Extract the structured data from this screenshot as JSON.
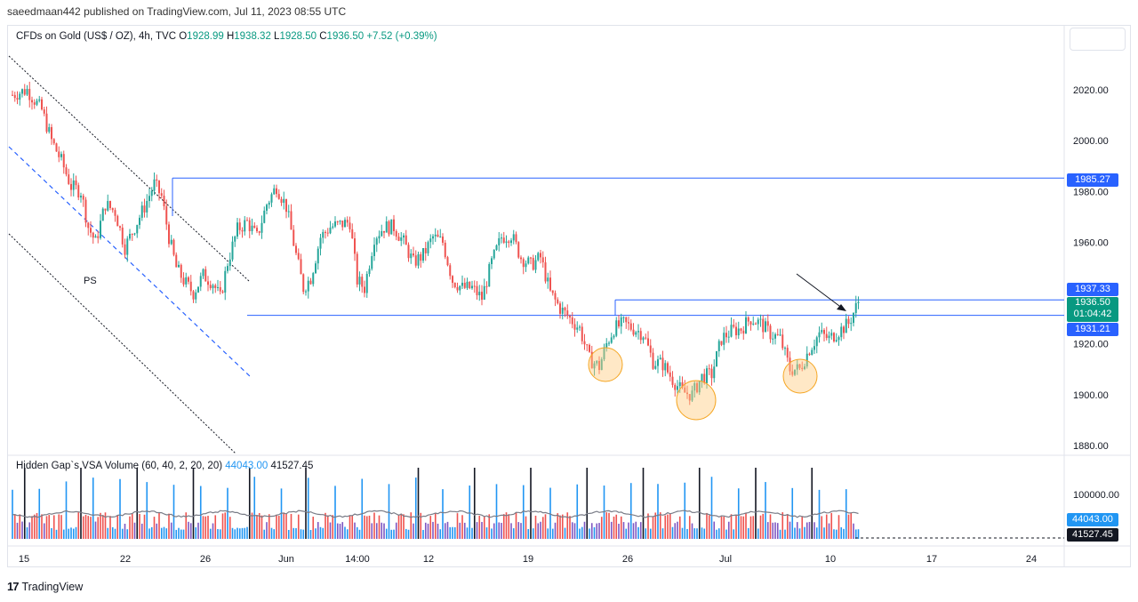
{
  "header": {
    "published": "saeedmaan442 published on TradingView.com, Jul 11, 2023 08:55 UTC"
  },
  "legend": {
    "symbol": "CFDs on Gold (US$ / OZ), 4h, TVC",
    "open_label": "O",
    "open": "1928.99",
    "high_label": "H",
    "high": "1938.32",
    "low_label": "L",
    "low": "1928.50",
    "close_label": "C",
    "close": "1936.50",
    "change": "+7.52 (+0.39%)"
  },
  "volume_legend": {
    "name": "Hidden Gap`s VSA Volume (60, 40, 2, 20, 20)",
    "value1": "44043.00",
    "value2": "41527.45"
  },
  "price_tags": {
    "level_top": "1985.27",
    "level_mid_high": "1937.33",
    "current_price": "1936.50",
    "countdown": "01:04:42",
    "level_mid_low": "1931.21",
    "vol_tag1": "44043.00",
    "vol_tag2": "41527.45"
  },
  "annotation": {
    "ps_label": "PS"
  },
  "footer": {
    "brand": "TradingView"
  },
  "colors": {
    "up": "#26a69a",
    "down": "#ef5350",
    "level_line": "#2962ff",
    "current_bg": "#089981",
    "level_tag_bg": "#2962ff",
    "circle_fill": "#ffcc80",
    "circle_stroke": "#f5a623"
  },
  "chart_data": {
    "type": "candlestick",
    "symbol": "CFDs on Gold (US$ / OZ)",
    "timeframe": "4h",
    "y_axis_ticks": [
      "2020.00",
      "2000.00",
      "1980.00",
      "1960.00",
      "1940.00",
      "1920.00",
      "1900.00",
      "1880.00"
    ],
    "ylim": [
      1878,
      2030
    ],
    "x_axis_ticks": [
      "15",
      "22",
      "26",
      "Jun",
      "14:00",
      "12",
      "19",
      "26",
      "Jul",
      "10",
      "17",
      "24"
    ],
    "volume_axis_tick": "100000.00",
    "horizontal_levels": [
      1985.27,
      1937.33,
      1931.21
    ],
    "price_path": [
      [
        0,
        2018
      ],
      [
        6,
        2020
      ],
      [
        12,
        2012
      ],
      [
        16,
        2000
      ],
      [
        20,
        1992
      ],
      [
        24,
        1982
      ],
      [
        28,
        1980
      ],
      [
        31,
        1966
      ],
      [
        34,
        1960
      ],
      [
        38,
        1975
      ],
      [
        42,
        1972
      ],
      [
        46,
        1958
      ],
      [
        50,
        1966
      ],
      [
        54,
        1974
      ],
      [
        58,
        1983
      ],
      [
        61,
        1978
      ],
      [
        64,
        1962
      ],
      [
        67,
        1950
      ],
      [
        70,
        1945
      ],
      [
        74,
        1940
      ],
      [
        78,
        1947
      ],
      [
        82,
        1944
      ],
      [
        85,
        1938
      ],
      [
        88,
        1952
      ],
      [
        92,
        1965
      ],
      [
        96,
        1968
      ],
      [
        100,
        1962
      ],
      [
        104,
        1975
      ],
      [
        108,
        1982
      ],
      [
        112,
        1974
      ],
      [
        116,
        1955
      ],
      [
        119,
        1942
      ],
      [
        122,
        1946
      ],
      [
        126,
        1962
      ],
      [
        130,
        1966
      ],
      [
        134,
        1967
      ],
      [
        138,
        1968
      ],
      [
        141,
        1945
      ],
      [
        144,
        1942
      ],
      [
        148,
        1962
      ],
      [
        152,
        1966
      ],
      [
        156,
        1966
      ],
      [
        160,
        1960
      ],
      [
        164,
        1952
      ],
      [
        168,
        1955
      ],
      [
        172,
        1962
      ],
      [
        176,
        1960
      ],
      [
        180,
        1945
      ],
      [
        184,
        1942
      ],
      [
        188,
        1942
      ],
      [
        192,
        1938
      ],
      [
        196,
        1952
      ],
      [
        200,
        1962
      ],
      [
        204,
        1963
      ],
      [
        208,
        1954
      ],
      [
        212,
        1951
      ],
      [
        216,
        1954
      ],
      [
        220,
        1940
      ],
      [
        224,
        1934
      ],
      [
        228,
        1930
      ],
      [
        232,
        1926
      ],
      [
        236,
        1914
      ],
      [
        240,
        1911
      ],
      [
        243,
        1920
      ],
      [
        246,
        1926
      ],
      [
        250,
        1928
      ],
      [
        254,
        1926
      ],
      [
        258,
        1924
      ],
      [
        262,
        1913
      ],
      [
        266,
        1912
      ],
      [
        270,
        1906
      ],
      [
        274,
        1901
      ],
      [
        278,
        1900
      ],
      [
        282,
        1907
      ],
      [
        286,
        1908
      ],
      [
        290,
        1922
      ],
      [
        294,
        1925
      ],
      [
        298,
        1926
      ],
      [
        302,
        1930
      ],
      [
        306,
        1928
      ],
      [
        310,
        1924
      ],
      [
        314,
        1922
      ],
      [
        318,
        1910
      ],
      [
        322,
        1910
      ],
      [
        326,
        1918
      ],
      [
        330,
        1924
      ],
      [
        334,
        1922
      ],
      [
        338,
        1925
      ],
      [
        342,
        1928
      ],
      [
        346,
        1936.5
      ]
    ]
  }
}
